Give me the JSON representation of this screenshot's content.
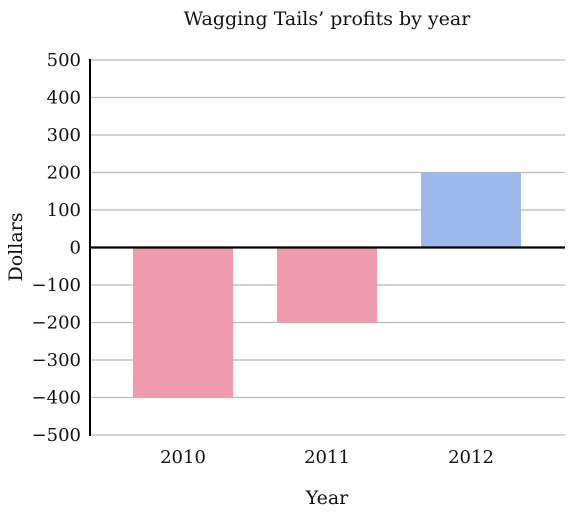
{
  "chart_data": {
    "type": "bar",
    "title": "Wagging Tails’ profits by year",
    "xlabel": "Year",
    "ylabel": "Dollars",
    "categories": [
      "2010",
      "2011",
      "2012"
    ],
    "values": [
      -400,
      -200,
      200
    ],
    "ylim": [
      -500,
      500
    ],
    "yticks": [
      500,
      400,
      300,
      200,
      100,
      0,
      -100,
      -200,
      -300,
      -400,
      -500
    ],
    "ytick_labels": [
      "500",
      "400",
      "300",
      "200",
      "100",
      "0",
      "−100",
      "−200",
      "−300",
      "−400",
      "−500"
    ],
    "grid": true,
    "colors": {
      "negative": "#ef9aad",
      "positive": "#9db8ec"
    }
  }
}
